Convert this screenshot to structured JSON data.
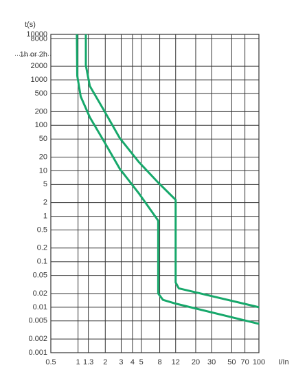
{
  "chart_data": {
    "type": "line",
    "y_label": "t(s)",
    "x_label": "I/In",
    "log_x": true,
    "log_y": true,
    "grid": true,
    "xlim": [
      0.5,
      100
    ],
    "ylim": [
      0.001,
      10000
    ],
    "xticks": [
      0.5,
      1,
      1.3,
      2,
      3,
      4,
      5,
      8,
      12,
      20,
      30,
      50,
      70,
      100
    ],
    "yticks": [
      10000,
      8000,
      {
        "value": 3600,
        "label": "1h or 2h"
      },
      2000,
      1000,
      500,
      200,
      100,
      50,
      20,
      10,
      5,
      2,
      1,
      0.5,
      0.2,
      0.1,
      0.05,
      0.02,
      0.01,
      0.005,
      0.002,
      0.001
    ],
    "series": [
      {
        "color": "#17a86b",
        "x": [
          0.97,
          0.98,
          1.07,
          1.35,
          1.93,
          2.9,
          4.7,
          7.7,
          7.7,
          8.7,
          12,
          100
        ],
        "values": [
          10000,
          1230,
          430,
          150,
          45,
          11,
          3.2,
          0.8,
          0.02,
          0.0145,
          0.012,
          0.0043
        ]
      },
      {
        "color": "#17a86b",
        "x": [
          1.22,
          1.22,
          1.35,
          1.93,
          2.9,
          4.7,
          7.7,
          12,
          12,
          13,
          100
        ],
        "values": [
          10000,
          2070,
          730,
          215,
          52,
          15.6,
          5.5,
          2.3,
          0.035,
          0.026,
          0.01
        ]
      }
    ]
  }
}
